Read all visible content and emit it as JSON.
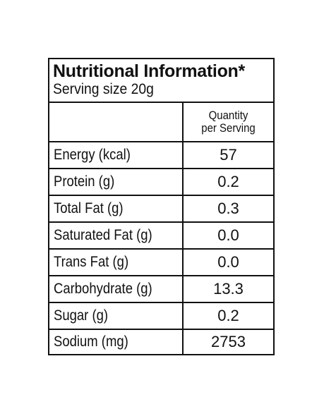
{
  "label": {
    "title": "Nutritional Information*",
    "serving_size": "Serving size 20g",
    "column_header": {
      "line1": "Quantity",
      "line2": "per Serving"
    },
    "rows": [
      {
        "name": "Energy (kcal)",
        "value": "57"
      },
      {
        "name": "Protein (g)",
        "value": "0.2"
      },
      {
        "name": "Total Fat (g)",
        "value": "0.3"
      },
      {
        "name": "Saturated Fat (g)",
        "value": "0.0"
      },
      {
        "name": "Trans Fat (g)",
        "value": "0.0"
      },
      {
        "name": "Carbohydrate (g)",
        "value": "13.3"
      },
      {
        "name": "Sugar (g)",
        "value": "0.2"
      },
      {
        "name": "Sodium (mg)",
        "value": "2753"
      }
    ]
  }
}
